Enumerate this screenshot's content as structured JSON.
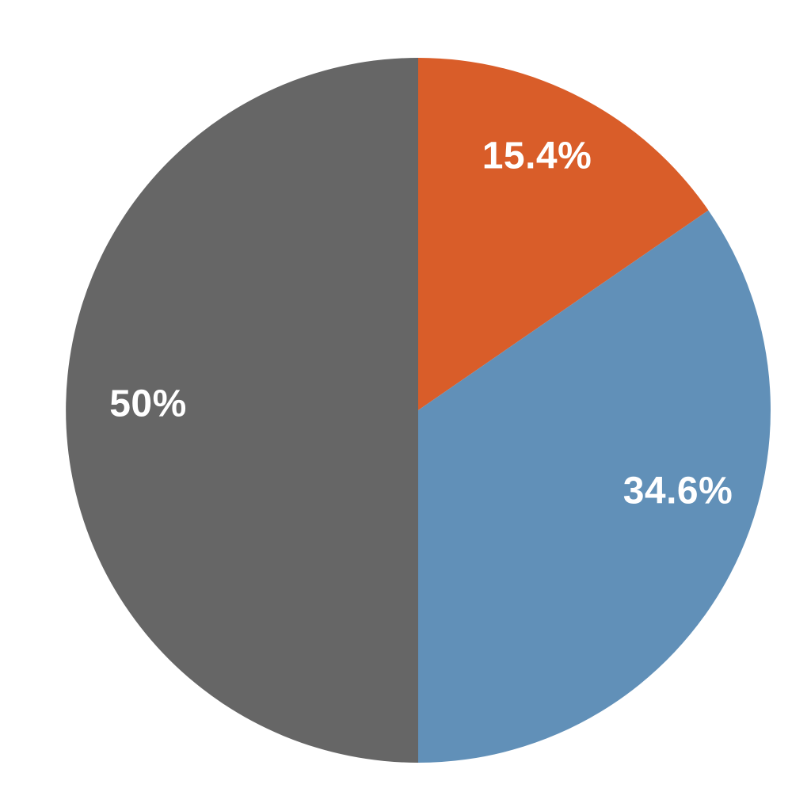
{
  "chart_data": {
    "type": "pie",
    "title": "",
    "slices": [
      {
        "name": "orange",
        "label": "15.4%",
        "value": 15.4,
        "color": "#D95D29"
      },
      {
        "name": "blue",
        "label": "34.6%",
        "value": 34.6,
        "color": "#6190B8"
      },
      {
        "name": "gray",
        "label": "50%",
        "value": 50.0,
        "color": "#666666"
      }
    ],
    "start_angle_deg": 0,
    "direction": "clockwise",
    "legend": "none",
    "background": "#FFFFFF",
    "label_color": "#FFFFFF"
  }
}
